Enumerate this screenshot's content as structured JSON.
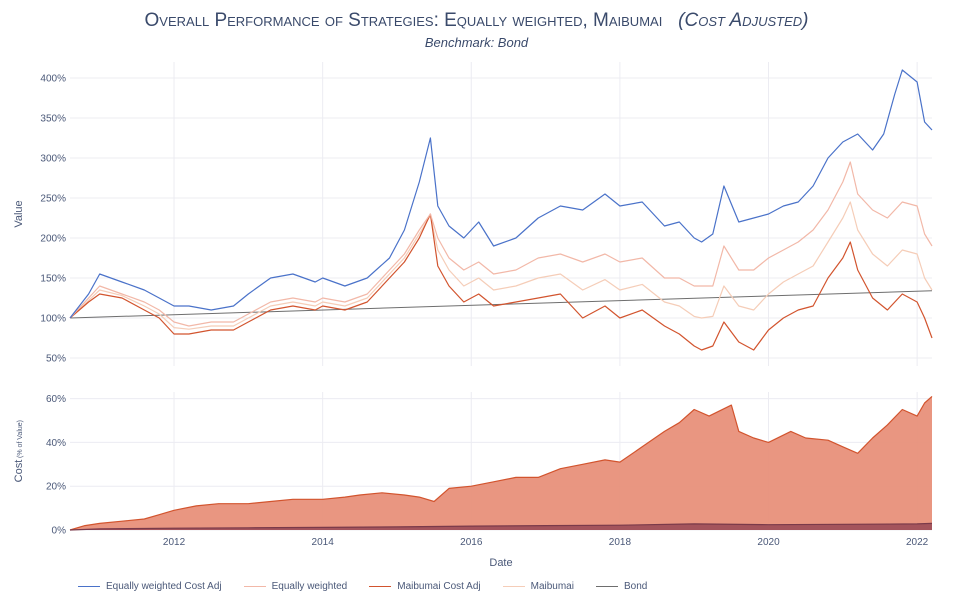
{
  "chart_data": [
    {
      "type": "line",
      "title": "Overall Performance of Strategies: Equally weighted, Maibumai",
      "title_suffix": "(Cost Adjusted)",
      "subtitle": "Benchmark: Bond",
      "xlabel": "Date",
      "ylabel": "Value",
      "x_range": [
        2010.6,
        2022.2
      ],
      "ylim": [
        40,
        420
      ],
      "y_ticks": [
        50,
        100,
        150,
        200,
        250,
        300,
        350,
        400
      ],
      "y_tick_labels": [
        "50%",
        "100%",
        "150%",
        "200%",
        "250%",
        "300%",
        "350%",
        "400%"
      ],
      "x_ticks": [
        2012,
        2014,
        2016,
        2018,
        2020,
        2022
      ],
      "x_tick_labels": [
        "2012",
        "2014",
        "2016",
        "2018",
        "2020",
        "2022"
      ],
      "grid": true,
      "series": [
        {
          "name": "Equally weighted Cost Adj",
          "color": "#4a72c9",
          "x": [
            2010.6,
            2010.85,
            2011.0,
            2011.3,
            2011.6,
            2011.8,
            2012.0,
            2012.2,
            2012.5,
            2012.8,
            2013.0,
            2013.3,
            2013.6,
            2013.9,
            2014.0,
            2014.3,
            2014.6,
            2014.9,
            2015.1,
            2015.3,
            2015.45,
            2015.55,
            2015.7,
            2015.9,
            2016.1,
            2016.3,
            2016.6,
            2016.9,
            2017.2,
            2017.5,
            2017.8,
            2018.0,
            2018.3,
            2018.6,
            2018.8,
            2019.0,
            2019.1,
            2019.25,
            2019.4,
            2019.6,
            2019.8,
            2020.0,
            2020.2,
            2020.4,
            2020.6,
            2020.8,
            2021.0,
            2021.2,
            2021.4,
            2021.55,
            2021.7,
            2021.8,
            2022.0,
            2022.1,
            2022.2
          ],
          "values": [
            100,
            130,
            155,
            145,
            135,
            125,
            115,
            115,
            110,
            115,
            130,
            150,
            155,
            145,
            150,
            140,
            150,
            175,
            210,
            270,
            325,
            240,
            215,
            200,
            220,
            190,
            200,
            225,
            240,
            235,
            255,
            240,
            245,
            215,
            220,
            200,
            195,
            205,
            265,
            220,
            225,
            230,
            240,
            245,
            265,
            300,
            320,
            330,
            310,
            330,
            380,
            410,
            395,
            345,
            335
          ]
        },
        {
          "name": "Equally weighted",
          "color": "#f2b8a8",
          "x": [
            2010.6,
            2010.85,
            2011.0,
            2011.3,
            2011.6,
            2011.8,
            2012.0,
            2012.2,
            2012.5,
            2012.8,
            2013.0,
            2013.3,
            2013.6,
            2013.9,
            2014.0,
            2014.3,
            2014.6,
            2014.9,
            2015.1,
            2015.3,
            2015.45,
            2015.55,
            2015.7,
            2015.9,
            2016.1,
            2016.3,
            2016.6,
            2016.9,
            2017.2,
            2017.5,
            2017.8,
            2018.0,
            2018.3,
            2018.6,
            2018.8,
            2019.0,
            2019.1,
            2019.25,
            2019.4,
            2019.6,
            2019.8,
            2020.0,
            2020.2,
            2020.4,
            2020.6,
            2020.8,
            2021.0,
            2021.1,
            2021.2,
            2021.4,
            2021.6,
            2021.8,
            2022.0,
            2022.1,
            2022.2
          ],
          "values": [
            100,
            125,
            140,
            130,
            120,
            110,
            95,
            90,
            95,
            95,
            105,
            120,
            125,
            120,
            125,
            120,
            130,
            160,
            180,
            210,
            230,
            200,
            175,
            160,
            170,
            155,
            160,
            175,
            180,
            170,
            180,
            170,
            175,
            150,
            150,
            140,
            140,
            140,
            190,
            160,
            160,
            175,
            185,
            195,
            210,
            235,
            270,
            295,
            255,
            235,
            225,
            245,
            240,
            205,
            190
          ]
        },
        {
          "name": "Maibumai Cost Adj",
          "color": "#d2542e",
          "x": [
            2010.6,
            2010.85,
            2011.0,
            2011.3,
            2011.6,
            2011.8,
            2012.0,
            2012.2,
            2012.5,
            2012.8,
            2013.0,
            2013.3,
            2013.6,
            2013.9,
            2014.0,
            2014.3,
            2014.6,
            2014.9,
            2015.1,
            2015.3,
            2015.45,
            2015.55,
            2015.7,
            2015.9,
            2016.1,
            2016.3,
            2016.6,
            2016.9,
            2017.2,
            2017.5,
            2017.8,
            2018.0,
            2018.3,
            2018.6,
            2018.8,
            2019.0,
            2019.1,
            2019.25,
            2019.4,
            2019.6,
            2019.8,
            2020.0,
            2020.2,
            2020.4,
            2020.6,
            2020.8,
            2021.0,
            2021.1,
            2021.2,
            2021.4,
            2021.6,
            2021.8,
            2022.0,
            2022.1,
            2022.2
          ],
          "values": [
            100,
            120,
            130,
            125,
            110,
            100,
            80,
            80,
            85,
            85,
            95,
            110,
            115,
            110,
            115,
            110,
            120,
            150,
            170,
            200,
            230,
            165,
            140,
            120,
            130,
            115,
            120,
            125,
            130,
            100,
            115,
            100,
            110,
            90,
            80,
            65,
            60,
            65,
            95,
            70,
            60,
            85,
            100,
            110,
            115,
            150,
            175,
            195,
            160,
            125,
            110,
            130,
            120,
            100,
            75
          ]
        },
        {
          "name": "Maibumai",
          "color": "#f5cdb8",
          "x": [
            2010.6,
            2010.85,
            2011.0,
            2011.3,
            2011.6,
            2011.8,
            2012.0,
            2012.2,
            2012.5,
            2012.8,
            2013.0,
            2013.3,
            2013.6,
            2013.9,
            2014.0,
            2014.3,
            2014.6,
            2014.9,
            2015.1,
            2015.3,
            2015.45,
            2015.55,
            2015.7,
            2015.9,
            2016.1,
            2016.3,
            2016.6,
            2016.9,
            2017.2,
            2017.5,
            2017.8,
            2018.0,
            2018.3,
            2018.6,
            2018.8,
            2019.0,
            2019.1,
            2019.25,
            2019.4,
            2019.6,
            2019.8,
            2020.0,
            2020.2,
            2020.4,
            2020.6,
            2020.8,
            2021.0,
            2021.1,
            2021.2,
            2021.4,
            2021.6,
            2021.8,
            2022.0,
            2022.1,
            2022.2
          ],
          "values": [
            100,
            122,
            135,
            128,
            115,
            105,
            88,
            86,
            90,
            90,
            100,
            115,
            120,
            115,
            120,
            115,
            125,
            155,
            175,
            205,
            228,
            185,
            160,
            140,
            150,
            135,
            140,
            150,
            155,
            135,
            148,
            135,
            142,
            120,
            115,
            102,
            100,
            102,
            140,
            115,
            110,
            130,
            145,
            155,
            165,
            195,
            225,
            245,
            210,
            180,
            165,
            185,
            180,
            150,
            135
          ]
        },
        {
          "name": "Bond",
          "color": "#6e6e6e",
          "x": [
            2010.6,
            2022.2
          ],
          "values": [
            100,
            134
          ]
        }
      ]
    },
    {
      "type": "area",
      "xlabel": "Date",
      "ylabel": "Cost",
      "ylabel_sub": "(% of Value)",
      "x_range": [
        2010.6,
        2022.2
      ],
      "ylim": [
        0,
        63
      ],
      "y_ticks": [
        0,
        20,
        40,
        60
      ],
      "y_tick_labels": [
        "0%",
        "20%",
        "40%",
        "60%"
      ],
      "x_ticks": [
        2012,
        2014,
        2016,
        2018,
        2020,
        2022
      ],
      "x_tick_labels": [
        "2012",
        "2014",
        "2016",
        "2018",
        "2020",
        "2022"
      ],
      "grid": true,
      "series": [
        {
          "name": "Maibumai Cost Adj",
          "color": "#d2542e",
          "fill": "#e8907a",
          "x": [
            2010.6,
            2010.8,
            2011.0,
            2011.3,
            2011.6,
            2011.8,
            2012.0,
            2012.3,
            2012.6,
            2013.0,
            2013.3,
            2013.6,
            2014.0,
            2014.3,
            2014.5,
            2014.8,
            2015.1,
            2015.3,
            2015.5,
            2015.7,
            2016.0,
            2016.3,
            2016.6,
            2016.9,
            2017.2,
            2017.5,
            2017.8,
            2018.0,
            2018.3,
            2018.6,
            2018.8,
            2019.0,
            2019.2,
            2019.5,
            2019.6,
            2019.8,
            2020.0,
            2020.3,
            2020.5,
            2020.8,
            2021.0,
            2021.2,
            2021.4,
            2021.6,
            2021.8,
            2022.0,
            2022.1,
            2022.2
          ],
          "values": [
            0,
            2,
            3,
            4,
            5,
            7,
            9,
            11,
            12,
            12,
            13,
            14,
            14,
            15,
            16,
            17,
            16,
            15,
            13,
            19,
            20,
            22,
            24,
            24,
            28,
            30,
            32,
            31,
            38,
            45,
            49,
            55,
            52,
            57,
            45,
            42,
            40,
            45,
            42,
            41,
            38,
            35,
            42,
            48,
            55,
            52,
            58,
            61
          ]
        },
        {
          "name": "Equally weighted Cost Adj",
          "color": "#7a3a4a",
          "fill": "#a0505a",
          "x": [
            2010.6,
            2011.0,
            2012.0,
            2013.0,
            2014.0,
            2015.0,
            2016.0,
            2017.0,
            2018.0,
            2019.0,
            2020.0,
            2021.0,
            2022.0,
            2022.2
          ],
          "values": [
            0,
            0.5,
            0.8,
            1.0,
            1.2,
            1.4,
            1.8,
            2.0,
            2.2,
            2.8,
            2.4,
            2.6,
            2.8,
            3.0
          ]
        }
      ]
    }
  ],
  "legend": [
    {
      "label": "Equally weighted Cost Adj",
      "color": "#4a72c9"
    },
    {
      "label": "Equally weighted",
      "color": "#f2b8a8"
    },
    {
      "label": "Maibumai Cost Adj",
      "color": "#d2542e"
    },
    {
      "label": "Maibumai",
      "color": "#f5cdb8"
    },
    {
      "label": "Bond",
      "color": "#6e6e6e"
    }
  ]
}
